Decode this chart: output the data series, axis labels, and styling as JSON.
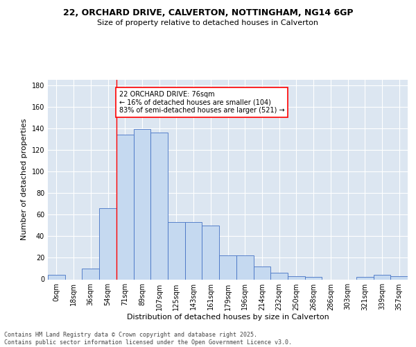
{
  "title_line1": "22, ORCHARD DRIVE, CALVERTON, NOTTINGHAM, NG14 6GP",
  "title_line2": "Size of property relative to detached houses in Calverton",
  "xlabel": "Distribution of detached houses by size in Calverton",
  "ylabel": "Number of detached properties",
  "bar_labels": [
    "0sqm",
    "18sqm",
    "36sqm",
    "54sqm",
    "71sqm",
    "89sqm",
    "107sqm",
    "125sqm",
    "143sqm",
    "161sqm",
    "179sqm",
    "196sqm",
    "214sqm",
    "232sqm",
    "250sqm",
    "268sqm",
    "286sqm",
    "303sqm",
    "321sqm",
    "339sqm",
    "357sqm"
  ],
  "bar_values": [
    4,
    0,
    10,
    66,
    134,
    139,
    136,
    53,
    53,
    50,
    22,
    22,
    12,
    6,
    3,
    2,
    0,
    0,
    2,
    4,
    3
  ],
  "bar_color": "#C5D9F0",
  "bar_edge_color": "#4472C4",
  "background_color": "#DCE6F1",
  "grid_color": "#ffffff",
  "vline_bin_index": 4,
  "vline_color": "red",
  "annotation_text": "22 ORCHARD DRIVE: 76sqm\n← 16% of detached houses are smaller (104)\n83% of semi-detached houses are larger (521) →",
  "annotation_box_color": "white",
  "annotation_box_edge_color": "red",
  "footer_text": "Contains HM Land Registry data © Crown copyright and database right 2025.\nContains public sector information licensed under the Open Government Licence v3.0.",
  "ylim": [
    0,
    185
  ],
  "yticks": [
    0,
    20,
    40,
    60,
    80,
    100,
    120,
    140,
    160,
    180
  ],
  "title_fontsize": 9,
  "subtitle_fontsize": 8,
  "axis_label_fontsize": 8,
  "tick_fontsize": 7,
  "annotation_fontsize": 7,
  "footer_fontsize": 6
}
